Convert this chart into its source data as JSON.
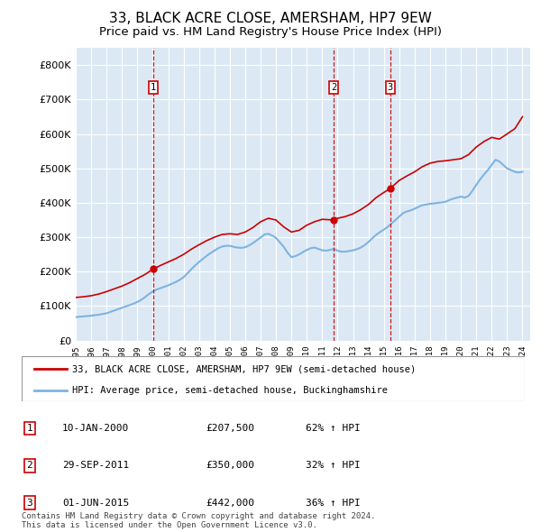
{
  "title": "33, BLACK ACRE CLOSE, AMERSHAM, HP7 9EW",
  "subtitle": "Price paid vs. HM Land Registry's House Price Index (HPI)",
  "title_fontsize": 11,
  "subtitle_fontsize": 9.5,
  "background_color": "#ffffff",
  "plot_bg_color": "#dce9f5",
  "ylim": [
    0,
    850000
  ],
  "yticks": [
    0,
    100000,
    200000,
    300000,
    400000,
    500000,
    600000,
    700000,
    800000
  ],
  "ytick_labels": [
    "£0",
    "£100K",
    "£200K",
    "£300K",
    "£400K",
    "£500K",
    "£600K",
    "£700K",
    "£800K"
  ],
  "hpi_color": "#7fb3e0",
  "price_color": "#cc0000",
  "transactions": [
    {
      "date": 2000.03,
      "price": 207500,
      "label": "1"
    },
    {
      "date": 2011.75,
      "price": 350000,
      "label": "2"
    },
    {
      "date": 2015.42,
      "price": 442000,
      "label": "3"
    }
  ],
  "legend_entries": [
    "33, BLACK ACRE CLOSE, AMERSHAM, HP7 9EW (semi-detached house)",
    "HPI: Average price, semi-detached house, Buckinghamshire"
  ],
  "table_rows": [
    {
      "num": "1",
      "date": "10-JAN-2000",
      "price": "£207,500",
      "change": "62% ↑ HPI"
    },
    {
      "num": "2",
      "date": "29-SEP-2011",
      "price": "£350,000",
      "change": "32% ↑ HPI"
    },
    {
      "num": "3",
      "date": "01-JUN-2015",
      "price": "£442,000",
      "change": "36% ↑ HPI"
    }
  ],
  "footer": "Contains HM Land Registry data © Crown copyright and database right 2024.\nThis data is licensed under the Open Government Licence v3.0.",
  "hpi_data": {
    "years": [
      1995.0,
      1995.25,
      1995.5,
      1995.75,
      1996.0,
      1996.25,
      1996.5,
      1996.75,
      1997.0,
      1997.25,
      1997.5,
      1997.75,
      1998.0,
      1998.25,
      1998.5,
      1998.75,
      1999.0,
      1999.25,
      1999.5,
      1999.75,
      2000.0,
      2000.25,
      2000.5,
      2000.75,
      2001.0,
      2001.25,
      2001.5,
      2001.75,
      2002.0,
      2002.25,
      2002.5,
      2002.75,
      2003.0,
      2003.25,
      2003.5,
      2003.75,
      2004.0,
      2004.25,
      2004.5,
      2004.75,
      2005.0,
      2005.25,
      2005.5,
      2005.75,
      2006.0,
      2006.25,
      2006.5,
      2006.75,
      2007.0,
      2007.25,
      2007.5,
      2007.75,
      2008.0,
      2008.25,
      2008.5,
      2008.75,
      2009.0,
      2009.25,
      2009.5,
      2009.75,
      2010.0,
      2010.25,
      2010.5,
      2010.75,
      2011.0,
      2011.25,
      2011.5,
      2011.75,
      2012.0,
      2012.25,
      2012.5,
      2012.75,
      2013.0,
      2013.25,
      2013.5,
      2013.75,
      2014.0,
      2014.25,
      2014.5,
      2014.75,
      2015.0,
      2015.25,
      2015.5,
      2015.75,
      2016.0,
      2016.25,
      2016.5,
      2016.75,
      2017.0,
      2017.25,
      2017.5,
      2017.75,
      2018.0,
      2018.25,
      2018.5,
      2018.75,
      2019.0,
      2019.25,
      2019.5,
      2019.75,
      2020.0,
      2020.25,
      2020.5,
      2020.75,
      2021.0,
      2021.25,
      2021.5,
      2021.75,
      2022.0,
      2022.25,
      2022.5,
      2022.75,
      2023.0,
      2023.25,
      2023.5,
      2023.75,
      2024.0
    ],
    "values": [
      68000,
      69000,
      70000,
      71000,
      72000,
      73500,
      75000,
      77000,
      79000,
      83000,
      87000,
      91000,
      95000,
      99000,
      103000,
      107000,
      112000,
      118000,
      126000,
      135000,
      142000,
      148000,
      152000,
      156000,
      160000,
      165000,
      170000,
      176000,
      184000,
      195000,
      207000,
      218000,
      228000,
      237000,
      246000,
      254000,
      261000,
      268000,
      273000,
      275000,
      275000,
      272000,
      270000,
      269000,
      271000,
      276000,
      283000,
      291000,
      299000,
      308000,
      310000,
      305000,
      298000,
      285000,
      272000,
      255000,
      242000,
      245000,
      250000,
      257000,
      263000,
      268000,
      270000,
      266000,
      262000,
      261000,
      263000,
      266000,
      261000,
      258000,
      258000,
      260000,
      262000,
      265000,
      270000,
      277000,
      286000,
      297000,
      307000,
      315000,
      322000,
      330000,
      340000,
      350000,
      360000,
      370000,
      375000,
      378000,
      383000,
      388000,
      393000,
      395000,
      397000,
      398000,
      400000,
      401000,
      403000,
      408000,
      412000,
      415000,
      418000,
      415000,
      420000,
      435000,
      452000,
      468000,
      482000,
      495000,
      510000,
      525000,
      520000,
      510000,
      500000,
      495000,
      490000,
      488000,
      490000
    ]
  },
  "price_data": {
    "years": [
      1995.0,
      1995.5,
      1996.0,
      1996.5,
      1997.0,
      1997.5,
      1998.0,
      1998.5,
      1999.0,
      1999.5,
      2000.03,
      2000.5,
      2001.0,
      2001.5,
      2002.0,
      2002.5,
      2003.0,
      2003.5,
      2004.0,
      2004.5,
      2005.0,
      2005.5,
      2006.0,
      2006.5,
      2007.0,
      2007.5,
      2008.0,
      2008.5,
      2009.0,
      2009.5,
      2010.0,
      2010.5,
      2011.0,
      2011.75,
      2012.0,
      2012.5,
      2013.0,
      2013.5,
      2014.0,
      2014.5,
      2015.0,
      2015.42,
      2015.75,
      2016.0,
      2016.5,
      2017.0,
      2017.5,
      2018.0,
      2018.5,
      2019.0,
      2019.5,
      2020.0,
      2020.5,
      2021.0,
      2021.5,
      2022.0,
      2022.5,
      2023.0,
      2023.5,
      2024.0
    ],
    "values": [
      125000,
      127000,
      130000,
      135000,
      142000,
      150000,
      158000,
      168000,
      180000,
      192000,
      207500,
      218000,
      228000,
      238000,
      250000,
      265000,
      278000,
      290000,
      300000,
      308000,
      310000,
      308000,
      315000,
      328000,
      345000,
      355000,
      350000,
      330000,
      315000,
      320000,
      335000,
      345000,
      352000,
      350000,
      355000,
      360000,
      368000,
      380000,
      395000,
      415000,
      430000,
      442000,
      455000,
      465000,
      478000,
      490000,
      505000,
      515000,
      520000,
      522000,
      525000,
      528000,
      540000,
      562000,
      578000,
      590000,
      585000,
      600000,
      615000,
      650000
    ]
  }
}
